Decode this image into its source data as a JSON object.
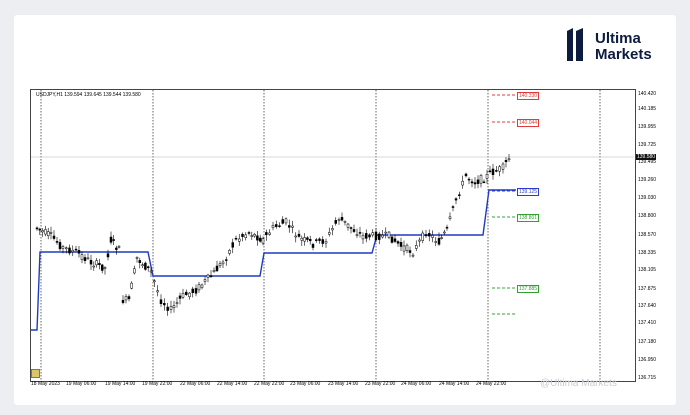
{
  "brand": {
    "line1": "Ultima",
    "line2": "Markets",
    "color": "#0d1b3e"
  },
  "chart": {
    "symbol_label": "USDJPY,H1  139.594 139.645 139.544 139.580",
    "current_price": "139.580",
    "price_ticks": [
      "140.420",
      "140.185",
      "139.955",
      "139.725",
      "139.495",
      "139.260",
      "139.030",
      "138.800",
      "138.570",
      "138.335",
      "138.105",
      "137.875",
      "137.640",
      "137.410",
      "137.180",
      "136.950",
      "136.715"
    ],
    "time_ticks": [
      "18 May 2023",
      "19 May 06:00",
      "19 May 14:00",
      "19 May 22:00",
      "22 May 06:00",
      "22 May 14:00",
      "22 May 22:00",
      "23 May 06:00",
      "23 May 14:00",
      "23 May 22:00",
      "24 May 06:00",
      "24 May 14:00",
      "24 May 22:00"
    ],
    "levels": [
      {
        "label": "140.330",
        "color": "#e03b3b"
      },
      {
        "label": "140.044",
        "color": "#e03b3b"
      },
      {
        "label": "139.125",
        "color": "#2b3bd1"
      },
      {
        "label": "138.801",
        "color": "#34a034"
      },
      {
        "label": "137.885",
        "color": "#34a034"
      }
    ],
    "colors": {
      "line": "#1f3bbf",
      "candle": "#000000",
      "grid": "#000000"
    }
  },
  "watermark": "@Ultima Markets",
  "chart_data": {
    "type": "candlestick",
    "series": [
      {
        "name": "USDJPY,H1",
        "values": [
          {
            "last": 139.58
          }
        ]
      }
    ],
    "ylim": [
      136.715,
      140.42
    ],
    "levels": [
      140.33,
      140.044,
      139.125,
      138.801,
      137.885
    ]
  }
}
